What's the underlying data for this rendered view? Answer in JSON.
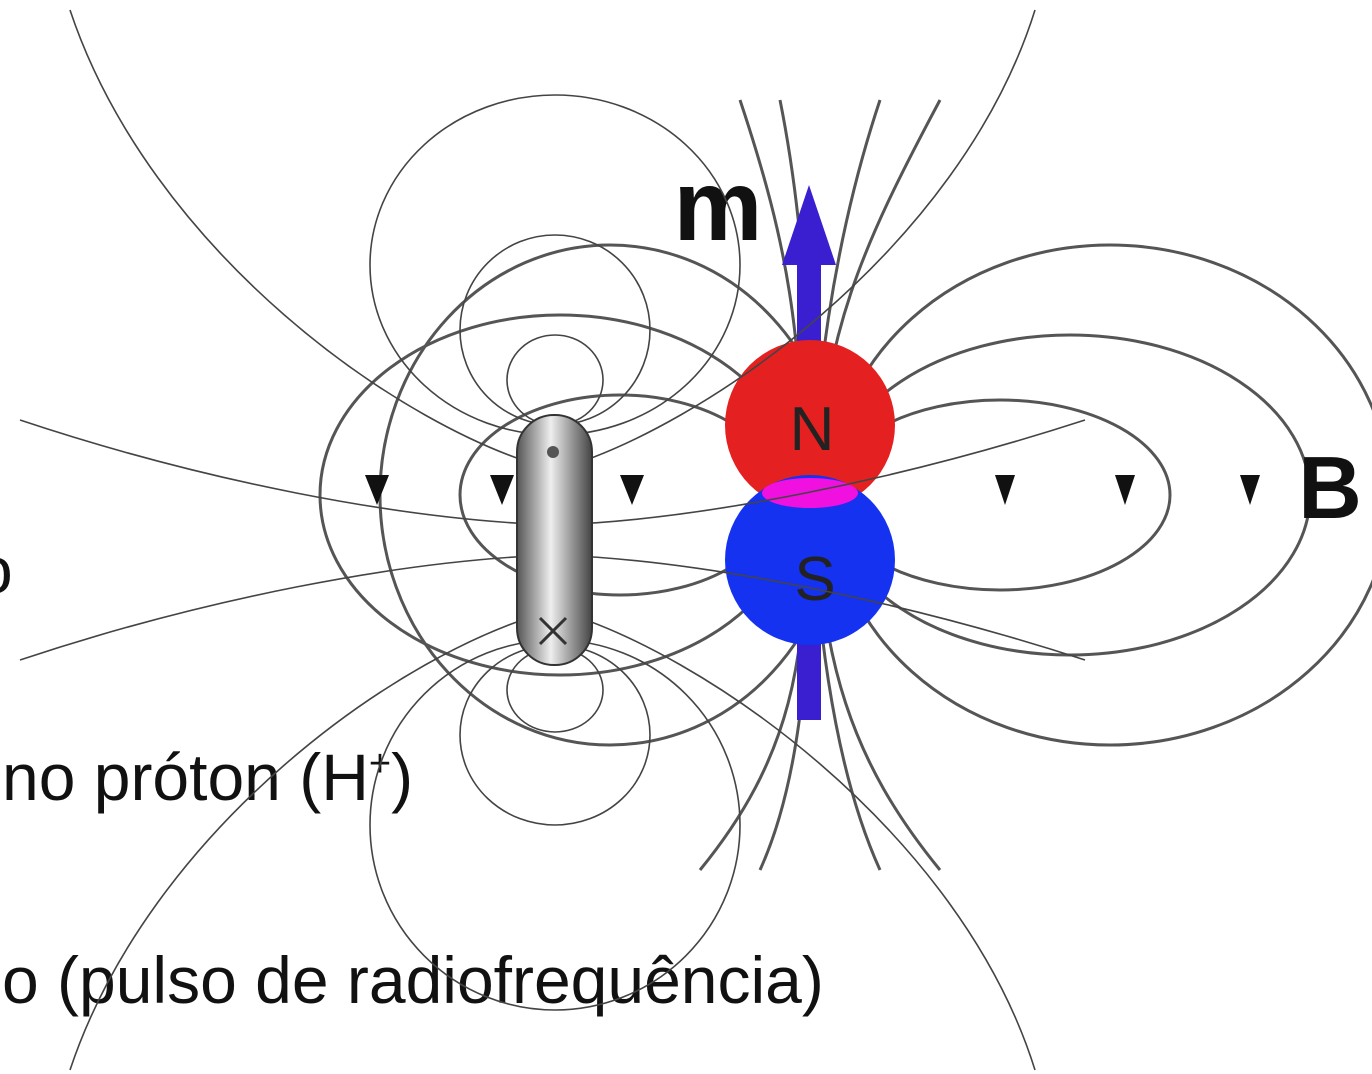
{
  "slide_text": {
    "line_1": "o",
    "line_2": {
      "before": "no próton (H",
      "superscript": "+",
      "after": ")"
    },
    "line_3": "o (pulso de radiofrequência)"
  },
  "diagram": {
    "moment_label": "m",
    "north_label": "N",
    "south_label": "S",
    "field_label": "B"
  }
}
